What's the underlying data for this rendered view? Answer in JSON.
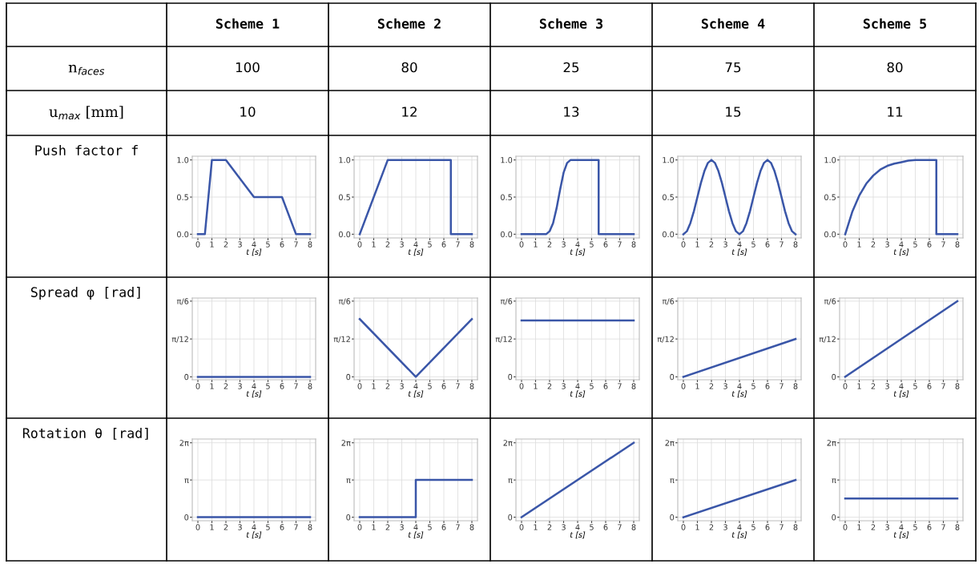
{
  "chart_data": [
    {
      "type": "other",
      "categories": [
        "Scheme 1",
        "Scheme 2",
        "Scheme 3",
        "Scheme 4",
        "Scheme 5"
      ],
      "y_categories": [
        "n$_{faces}$",
        "u$_{max}$ [mm]",
        "Push factor f",
        "Spread φ [rad]",
        "Rotation θ [rad]"
      ],
      "cell_labels": [
        [
          "100",
          "80",
          "25",
          "75",
          "80"
        ],
        [
          "10",
          "12",
          "13",
          "15",
          "11"
        ]
      ]
    },
    {
      "type": "line",
      "xlabel": "t [s]",
      "color": "#3a56a8",
      "grid": true,
      "xlim": [
        -0.4,
        8.4
      ],
      "xticks": [
        0,
        1,
        2,
        3,
        4,
        5,
        6,
        7,
        8
      ],
      "ylim": [
        -0.05,
        1.05
      ],
      "yticks": [
        {
          "value": 0,
          "label": "0.0"
        },
        {
          "value": 0.5,
          "label": "0.5"
        },
        {
          "value": 1,
          "label": "1.0"
        }
      ],
      "x": [
        0,
        0.5,
        1,
        2,
        4,
        6,
        7,
        8
      ],
      "values": [
        0,
        0,
        1,
        1,
        0.5,
        0.5,
        0,
        0
      ]
    },
    {
      "type": "line",
      "xlabel": "t [s]",
      "color": "#3a56a8",
      "grid": true,
      "xlim": [
        -0.4,
        8.4
      ],
      "xticks": [
        0,
        1,
        2,
        3,
        4,
        5,
        6,
        7,
        8
      ],
      "ylim": [
        -0.05,
        1.05
      ],
      "yticks": [
        {
          "value": 0,
          "label": "0.0"
        },
        {
          "value": 0.5,
          "label": "0.5"
        },
        {
          "value": 1,
          "label": "1.0"
        }
      ],
      "x": [
        0,
        2,
        6.5,
        6.5,
        8
      ],
      "values": [
        0,
        1,
        1,
        0,
        0
      ]
    },
    {
      "type": "line",
      "xlabel": "t [s]",
      "color": "#3a56a8",
      "grid": true,
      "xlim": [
        -0.4,
        8.4
      ],
      "xticks": [
        0,
        1,
        2,
        3,
        4,
        5,
        6,
        7,
        8
      ],
      "ylim": [
        -0.05,
        1.05
      ],
      "yticks": [
        {
          "value": 0,
          "label": "0.0"
        },
        {
          "value": 0.5,
          "label": "0.5"
        },
        {
          "value": 1,
          "label": "1.0"
        }
      ],
      "x": [
        0,
        1.75,
        2,
        2.25,
        2.5,
        2.75,
        3,
        3.25,
        3.5,
        5.5,
        5.5,
        8
      ],
      "values": [
        0,
        0,
        0.04,
        0.15,
        0.35,
        0.6,
        0.83,
        0.96,
        1,
        1,
        0,
        0
      ]
    },
    {
      "type": "line",
      "xlabel": "t [s]",
      "color": "#3a56a8",
      "grid": true,
      "xlim": [
        -0.4,
        8.4
      ],
      "xticks": [
        0,
        1,
        2,
        3,
        4,
        5,
        6,
        7,
        8
      ],
      "ylim": [
        -0.05,
        1.05
      ],
      "yticks": [
        {
          "value": 0,
          "label": "0.0"
        },
        {
          "value": 0.5,
          "label": "0.5"
        },
        {
          "value": 1,
          "label": "1.0"
        }
      ],
      "x": [
        0,
        0.25,
        0.5,
        0.75,
        1,
        1.25,
        1.5,
        1.75,
        2,
        2.25,
        2.5,
        2.75,
        3,
        3.25,
        3.5,
        3.75,
        4,
        4.25,
        4.5,
        4.75,
        5,
        5.25,
        5.5,
        5.75,
        6,
        6.25,
        6.5,
        6.75,
        7,
        7.25,
        7.5,
        7.75,
        8
      ],
      "values": [
        0,
        0.04,
        0.15,
        0.31,
        0.5,
        0.69,
        0.85,
        0.96,
        1,
        0.96,
        0.85,
        0.69,
        0.5,
        0.31,
        0.15,
        0.04,
        0,
        0.04,
        0.15,
        0.31,
        0.5,
        0.69,
        0.85,
        0.96,
        1,
        0.96,
        0.85,
        0.69,
        0.5,
        0.31,
        0.15,
        0.04,
        0
      ]
    },
    {
      "type": "line",
      "xlabel": "t [s]",
      "color": "#3a56a8",
      "grid": true,
      "xlim": [
        -0.4,
        8.4
      ],
      "xticks": [
        0,
        1,
        2,
        3,
        4,
        5,
        6,
        7,
        8
      ],
      "ylim": [
        -0.05,
        1.05
      ],
      "yticks": [
        {
          "value": 0,
          "label": "0.0"
        },
        {
          "value": 0.5,
          "label": "0.5"
        },
        {
          "value": 1,
          "label": "1.0"
        }
      ],
      "x": [
        0,
        0.5,
        1,
        1.5,
        2,
        2.5,
        3,
        3.5,
        4,
        4.5,
        5,
        6.5,
        6.5,
        8
      ],
      "values": [
        0,
        0.3,
        0.52,
        0.68,
        0.79,
        0.87,
        0.92,
        0.95,
        0.97,
        0.99,
        1,
        1,
        0,
        0
      ]
    },
    {
      "type": "line",
      "xlabel": "t [s]",
      "color": "#3a56a8",
      "grid": true,
      "xlim": [
        -0.4,
        8.4
      ],
      "xticks": [
        0,
        1,
        2,
        3,
        4,
        5,
        6,
        7,
        8
      ],
      "ylim": [
        -0.02,
        0.545
      ],
      "yticks": [
        0,
        {
          "value": 0.2618,
          "label": "π/12"
        },
        {
          "value": 0.5236,
          "label": "π/6"
        }
      ],
      "x": [
        0,
        8
      ],
      "values": [
        0,
        0
      ]
    },
    {
      "type": "line",
      "xlabel": "t [s]",
      "color": "#3a56a8",
      "grid": true,
      "xlim": [
        -0.4,
        8.4
      ],
      "xticks": [
        0,
        1,
        2,
        3,
        4,
        5,
        6,
        7,
        8
      ],
      "ylim": [
        -0.02,
        0.545
      ],
      "yticks": [
        0,
        {
          "value": 0.2618,
          "label": "π/12"
        },
        {
          "value": 0.5236,
          "label": "π/6"
        }
      ],
      "x": [
        0,
        4,
        8
      ],
      "values": [
        0.4,
        0,
        0.4
      ]
    },
    {
      "type": "line",
      "xlabel": "t [s]",
      "color": "#3a56a8",
      "grid": true,
      "xlim": [
        -0.4,
        8.4
      ],
      "xticks": [
        0,
        1,
        2,
        3,
        4,
        5,
        6,
        7,
        8
      ],
      "ylim": [
        -0.02,
        0.545
      ],
      "yticks": [
        0,
        {
          "value": 0.2618,
          "label": "π/12"
        },
        {
          "value": 0.5236,
          "label": "π/6"
        }
      ],
      "x": [
        0,
        8
      ],
      "values": [
        0.39,
        0.39
      ]
    },
    {
      "type": "line",
      "xlabel": "t [s]",
      "color": "#3a56a8",
      "grid": true,
      "xlim": [
        -0.4,
        8.4
      ],
      "xticks": [
        0,
        1,
        2,
        3,
        4,
        5,
        6,
        7,
        8
      ],
      "ylim": [
        -0.02,
        0.545
      ],
      "yticks": [
        0,
        {
          "value": 0.2618,
          "label": "π/12"
        },
        {
          "value": 0.5236,
          "label": "π/6"
        }
      ],
      "x": [
        0,
        8
      ],
      "values": [
        0,
        0.2618
      ]
    },
    {
      "type": "line",
      "xlabel": "t [s]",
      "color": "#3a56a8",
      "grid": true,
      "xlim": [
        -0.4,
        8.4
      ],
      "xticks": [
        0,
        1,
        2,
        3,
        4,
        5,
        6,
        7,
        8
      ],
      "ylim": [
        -0.02,
        0.545
      ],
      "yticks": [
        0,
        {
          "value": 0.2618,
          "label": "π/12"
        },
        {
          "value": 0.5236,
          "label": "π/6"
        }
      ],
      "x": [
        0,
        8
      ],
      "values": [
        0,
        0.5236
      ]
    },
    {
      "type": "line",
      "xlabel": "t [s]",
      "color": "#3a56a8",
      "grid": true,
      "xlim": [
        -0.4,
        8.4
      ],
      "xticks": [
        0,
        1,
        2,
        3,
        4,
        5,
        6,
        7,
        8
      ],
      "ylim": [
        -0.3,
        6.6
      ],
      "yticks": [
        0,
        {
          "value": 3.1416,
          "label": "π"
        },
        {
          "value": 6.2832,
          "label": "2π"
        }
      ],
      "x": [
        0,
        8
      ],
      "values": [
        0,
        0
      ]
    },
    {
      "type": "line",
      "xlabel": "t [s]",
      "color": "#3a56a8",
      "grid": true,
      "xlim": [
        -0.4,
        8.4
      ],
      "xticks": [
        0,
        1,
        2,
        3,
        4,
        5,
        6,
        7,
        8
      ],
      "ylim": [
        -0.3,
        6.6
      ],
      "yticks": [
        0,
        {
          "value": 3.1416,
          "label": "π"
        },
        {
          "value": 6.2832,
          "label": "2π"
        }
      ],
      "x": [
        0,
        4,
        4,
        8
      ],
      "values": [
        0,
        0,
        3.1416,
        3.1416
      ]
    },
    {
      "type": "line",
      "xlabel": "t [s]",
      "color": "#3a56a8",
      "grid": true,
      "xlim": [
        -0.4,
        8.4
      ],
      "xticks": [
        0,
        1,
        2,
        3,
        4,
        5,
        6,
        7,
        8
      ],
      "ylim": [
        -0.3,
        6.6
      ],
      "yticks": [
        0,
        {
          "value": 3.1416,
          "label": "π"
        },
        {
          "value": 6.2832,
          "label": "2π"
        }
      ],
      "x": [
        0,
        8
      ],
      "values": [
        0,
        6.2832
      ]
    },
    {
      "type": "line",
      "xlabel": "t [s]",
      "color": "#3a56a8",
      "grid": true,
      "xlim": [
        -0.4,
        8.4
      ],
      "xticks": [
        0,
        1,
        2,
        3,
        4,
        5,
        6,
        7,
        8
      ],
      "ylim": [
        -0.3,
        6.6
      ],
      "yticks": [
        0,
        {
          "value": 3.1416,
          "label": "π"
        },
        {
          "value": 6.2832,
          "label": "2π"
        }
      ],
      "x": [
        0,
        8
      ],
      "values": [
        0,
        3.1416
      ]
    },
    {
      "type": "line",
      "xlabel": "t [s]",
      "color": "#3a56a8",
      "grid": true,
      "xlim": [
        -0.4,
        8.4
      ],
      "xticks": [
        0,
        1,
        2,
        3,
        4,
        5,
        6,
        7,
        8
      ],
      "ylim": [
        -0.3,
        6.6
      ],
      "yticks": [
        0,
        {
          "value": 3.1416,
          "label": "π"
        },
        {
          "value": 6.2832,
          "label": "2π"
        }
      ],
      "x": [
        0,
        8
      ],
      "values": [
        1.5708,
        1.5708
      ]
    }
  ]
}
